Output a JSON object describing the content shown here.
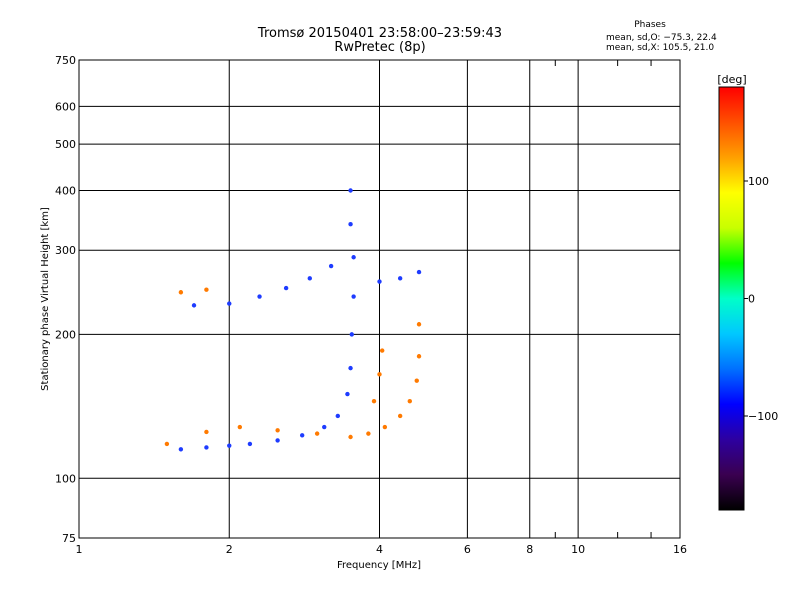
{
  "header": {
    "title_line1": "Tromsø 20150401 23:58:00–23:59:43",
    "title_line2": "RwPretec (8p)"
  },
  "phases_box": {
    "title": "Phases",
    "line_o": "mean, sd,O: −75.3, 22.4",
    "line_x": "mean, sd,X: 105.5, 21.0"
  },
  "colorbar": {
    "label": "[deg]",
    "ticks": [
      {
        "value": 100,
        "label": "100"
      },
      {
        "value": 0,
        "label": "0"
      },
      {
        "value": -100,
        "label": "−100"
      }
    ],
    "range": [
      -180,
      180
    ],
    "colors_bottom_to_top": [
      "#000000",
      "#3a0050",
      "#2d00a0",
      "#0000ff",
      "#0070ff",
      "#00c8ff",
      "#00ffc8",
      "#00ff00",
      "#c8ff00",
      "#ffff00",
      "#ffa000",
      "#ff5000",
      "#ff0000"
    ]
  },
  "chart_data": {
    "type": "scatter",
    "title": "Tromsø 20150401 23:58:00–23:59:43",
    "subtitle": "RwPretec (8p)",
    "xlabel": "Frequency [MHz]",
    "ylabel": "Stationary phase Virtual Height [km]",
    "xscale": "log",
    "yscale": "log",
    "xlim": [
      1,
      16
    ],
    "ylim": [
      75,
      750
    ],
    "xticks": [
      1,
      2,
      4,
      6,
      8,
      10,
      16
    ],
    "yticks": [
      75,
      100,
      200,
      300,
      400,
      500,
      600,
      750
    ],
    "grid": true,
    "series": [
      {
        "name": "O",
        "color": "#1e3cff",
        "values": [
          {
            "x": 1.6,
            "y": 115
          },
          {
            "x": 1.8,
            "y": 116
          },
          {
            "x": 2.0,
            "y": 117
          },
          {
            "x": 2.2,
            "y": 118
          },
          {
            "x": 2.5,
            "y": 120
          },
          {
            "x": 2.8,
            "y": 123
          },
          {
            "x": 3.1,
            "y": 128
          },
          {
            "x": 3.3,
            "y": 135
          },
          {
            "x": 3.45,
            "y": 150
          },
          {
            "x": 3.5,
            "y": 170
          },
          {
            "x": 3.52,
            "y": 200
          },
          {
            "x": 3.55,
            "y": 240
          },
          {
            "x": 3.55,
            "y": 290
          },
          {
            "x": 3.5,
            "y": 340
          },
          {
            "x": 3.5,
            "y": 400
          },
          {
            "x": 1.7,
            "y": 230
          },
          {
            "x": 2.0,
            "y": 232
          },
          {
            "x": 2.3,
            "y": 240
          },
          {
            "x": 2.6,
            "y": 250
          },
          {
            "x": 2.9,
            "y": 262
          },
          {
            "x": 3.2,
            "y": 278
          },
          {
            "x": 4.0,
            "y": 258
          },
          {
            "x": 4.4,
            "y": 262
          },
          {
            "x": 4.8,
            "y": 270
          }
        ]
      },
      {
        "name": "X",
        "color": "#ff7a00",
        "values": [
          {
            "x": 1.5,
            "y": 118
          },
          {
            "x": 1.8,
            "y": 125
          },
          {
            "x": 2.1,
            "y": 128
          },
          {
            "x": 2.5,
            "y": 126
          },
          {
            "x": 3.0,
            "y": 124
          },
          {
            "x": 3.5,
            "y": 122
          },
          {
            "x": 3.8,
            "y": 124
          },
          {
            "x": 4.1,
            "y": 128
          },
          {
            "x": 4.4,
            "y": 135
          },
          {
            "x": 4.6,
            "y": 145
          },
          {
            "x": 4.75,
            "y": 160
          },
          {
            "x": 4.8,
            "y": 180
          },
          {
            "x": 4.8,
            "y": 210
          },
          {
            "x": 3.9,
            "y": 145
          },
          {
            "x": 4.0,
            "y": 165
          },
          {
            "x": 4.05,
            "y": 185
          },
          {
            "x": 1.6,
            "y": 245
          },
          {
            "x": 1.8,
            "y": 248
          }
        ]
      }
    ]
  }
}
